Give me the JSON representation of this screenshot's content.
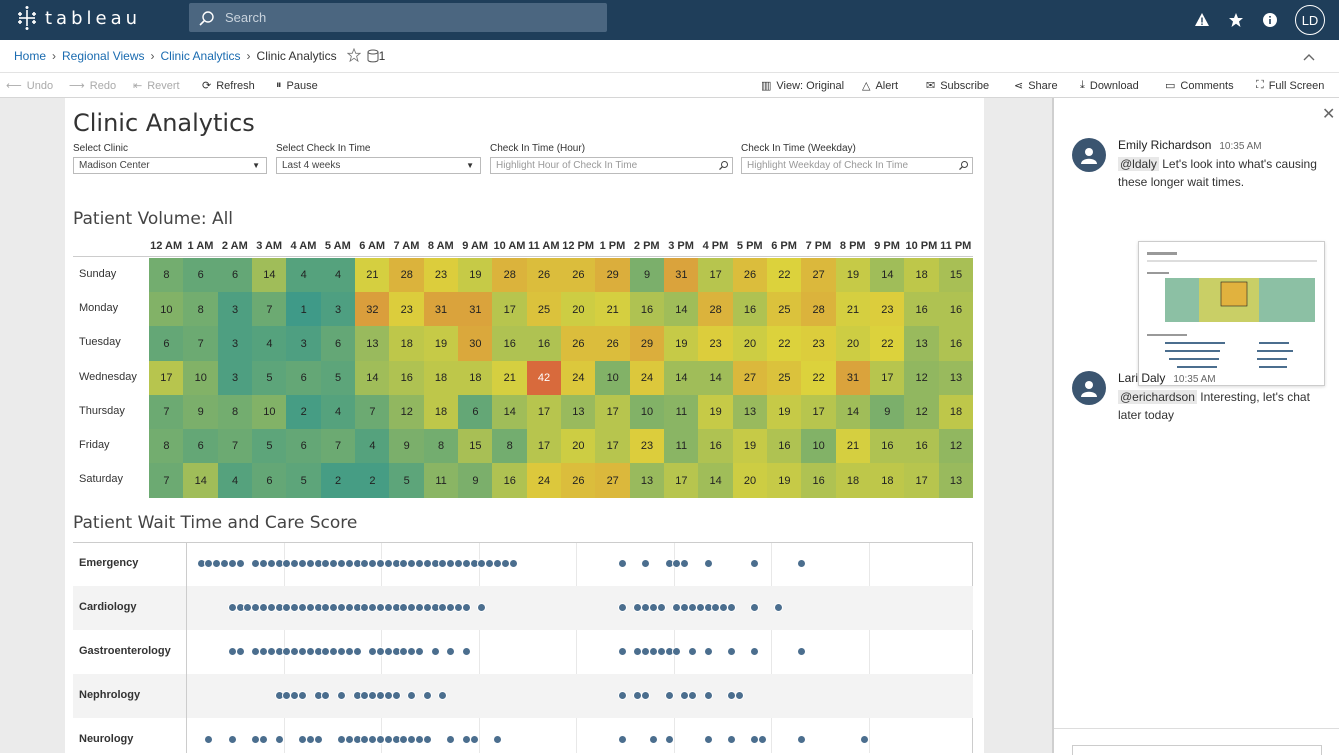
{
  "app": {
    "brand": "tableau"
  },
  "search": {
    "placeholder": "Search"
  },
  "user": {
    "initials": "LD"
  },
  "breadcrumb": {
    "home": "Home",
    "regional": "Regional Views",
    "clinic": "Clinic Analytics",
    "current": "Clinic Analytics",
    "count": "1"
  },
  "toolbar": {
    "undo": "Undo",
    "redo": "Redo",
    "revert": "Revert",
    "refresh": "Refresh",
    "pause": "Pause",
    "view": "View: Original",
    "alert": "Alert",
    "subscribe": "Subscribe",
    "share": "Share",
    "download": "Download",
    "comments": "Comments",
    "fullscreen": "Full Screen"
  },
  "dashboard": {
    "title": "Clinic Analytics",
    "filters": [
      {
        "label": "Select Clinic",
        "value": "Madison Center",
        "kind": "dropdown"
      },
      {
        "label": "Select Check In Time",
        "value": "Last 4 weeks",
        "kind": "dropdown"
      },
      {
        "label": "Check In Time (Hour)",
        "value": "Highlight Hour of Check In Time",
        "kind": "search"
      },
      {
        "label": "Check In Time (Weekday)",
        "value": "Highlight Weekday of Check In Time",
        "kind": "search"
      }
    ],
    "volume_title": "Patient Volume: All",
    "wait_title": "Patient Wait Time and Care Score"
  },
  "chart_data": [
    {
      "type": "heatmap",
      "title": "Patient Volume: All",
      "x": [
        "12 AM",
        "1 AM",
        "2 AM",
        "3 AM",
        "4 AM",
        "5 AM",
        "6 AM",
        "7 AM",
        "8 AM",
        "9 AM",
        "10 AM",
        "11 AM",
        "12 PM",
        "1 PM",
        "2 PM",
        "3 PM",
        "4 PM",
        "5 PM",
        "6 PM",
        "7 PM",
        "8 PM",
        "9 PM",
        "10 PM",
        "11 PM"
      ],
      "y": [
        "Sunday",
        "Monday",
        "Tuesday",
        "Wednesday",
        "Thursday",
        "Friday",
        "Saturday"
      ],
      "values": [
        [
          8,
          6,
          6,
          14,
          4,
          4,
          21,
          28,
          23,
          19,
          28,
          26,
          26,
          29,
          9,
          31,
          17,
          26,
          22,
          27,
          19,
          14,
          18,
          15
        ],
        [
          10,
          8,
          3,
          7,
          1,
          3,
          32,
          23,
          31,
          31,
          17,
          25,
          20,
          21,
          16,
          14,
          28,
          16,
          25,
          28,
          21,
          23,
          16,
          16
        ],
        [
          6,
          7,
          3,
          4,
          3,
          6,
          13,
          18,
          19,
          30,
          16,
          16,
          26,
          26,
          29,
          19,
          23,
          20,
          22,
          23,
          20,
          22,
          13,
          16
        ],
        [
          17,
          10,
          3,
          5,
          6,
          5,
          14,
          16,
          18,
          18,
          21,
          42,
          24,
          10,
          24,
          14,
          14,
          27,
          25,
          22,
          31,
          17,
          12,
          13
        ],
        [
          7,
          9,
          8,
          10,
          2,
          4,
          7,
          12,
          18,
          6,
          14,
          17,
          13,
          17,
          10,
          11,
          19,
          13,
          19,
          17,
          14,
          9,
          12,
          18
        ],
        [
          8,
          6,
          7,
          5,
          6,
          7,
          4,
          9,
          8,
          15,
          8,
          17,
          20,
          17,
          23,
          11,
          16,
          19,
          16,
          10,
          21,
          16,
          16,
          12
        ],
        [
          7,
          14,
          4,
          6,
          5,
          2,
          2,
          5,
          11,
          9,
          16,
          24,
          26,
          27,
          13,
          17,
          14,
          20,
          19,
          16,
          18,
          18,
          17,
          13
        ]
      ],
      "colors": {
        "low": "#3f9a88",
        "mid": "#dcd23c",
        "high": "#d86a3c"
      }
    },
    {
      "type": "scatter",
      "title": "Patient Wait Time and Care Score",
      "categories": [
        "Emergency",
        "Cardiology",
        "Gastroenterology",
        "Nephrology",
        "Neurology"
      ],
      "series": [
        {
          "values": [
            0.02,
            0.03,
            0.04,
            0.05,
            0.06,
            0.07,
            0.09,
            0.1,
            0.11,
            0.12,
            0.13,
            0.14,
            0.15,
            0.16,
            0.17,
            0.18,
            0.19,
            0.2,
            0.21,
            0.22,
            0.23,
            0.24,
            0.25,
            0.26,
            0.27,
            0.28,
            0.29,
            0.3,
            0.31,
            0.32,
            0.33,
            0.34,
            0.35,
            0.36,
            0.37,
            0.38,
            0.39,
            0.4,
            0.41,
            0.42,
            0.56,
            0.59,
            0.62,
            0.63,
            0.64,
            0.67,
            0.73,
            0.79
          ]
        },
        {
          "values": [
            0.06,
            0.07,
            0.08,
            0.09,
            0.1,
            0.11,
            0.12,
            0.13,
            0.14,
            0.15,
            0.16,
            0.17,
            0.18,
            0.19,
            0.2,
            0.21,
            0.22,
            0.23,
            0.24,
            0.25,
            0.26,
            0.27,
            0.28,
            0.29,
            0.3,
            0.31,
            0.32,
            0.33,
            0.34,
            0.35,
            0.36,
            0.38,
            0.56,
            0.58,
            0.59,
            0.6,
            0.61,
            0.63,
            0.64,
            0.65,
            0.66,
            0.67,
            0.68,
            0.69,
            0.7,
            0.73,
            0.76
          ]
        },
        {
          "values": [
            0.06,
            0.07,
            0.09,
            0.1,
            0.11,
            0.12,
            0.13,
            0.14,
            0.15,
            0.16,
            0.17,
            0.18,
            0.19,
            0.2,
            0.21,
            0.22,
            0.24,
            0.25,
            0.26,
            0.27,
            0.28,
            0.29,
            0.3,
            0.32,
            0.34,
            0.36,
            0.56,
            0.58,
            0.59,
            0.6,
            0.61,
            0.62,
            0.63,
            0.65,
            0.67,
            0.7,
            0.73,
            0.79
          ]
        },
        {
          "values": [
            0.12,
            0.13,
            0.14,
            0.15,
            0.17,
            0.18,
            0.2,
            0.22,
            0.23,
            0.24,
            0.25,
            0.26,
            0.27,
            0.29,
            0.31,
            0.33,
            0.56,
            0.58,
            0.59,
            0.62,
            0.64,
            0.65,
            0.67,
            0.7,
            0.71
          ]
        },
        {
          "values": [
            0.03,
            0.06,
            0.09,
            0.1,
            0.12,
            0.15,
            0.16,
            0.17,
            0.2,
            0.21,
            0.22,
            0.23,
            0.24,
            0.25,
            0.26,
            0.27,
            0.28,
            0.29,
            0.3,
            0.31,
            0.34,
            0.36,
            0.37,
            0.4,
            0.56,
            0.6,
            0.62,
            0.67,
            0.7,
            0.73,
            0.74,
            0.79,
            0.87
          ]
        }
      ],
      "xlim": [
        0,
        1
      ]
    }
  ],
  "comments": [
    {
      "author": "Emily Richardson",
      "time": "10:35 AM",
      "mention": "@ldaly",
      "text": "Let's look into what's causing these longer wait times."
    },
    {
      "author": "Lari Daly",
      "time": "10:35 AM",
      "mention": "@erichardson",
      "text": "Interesting, let's chat later today"
    }
  ]
}
